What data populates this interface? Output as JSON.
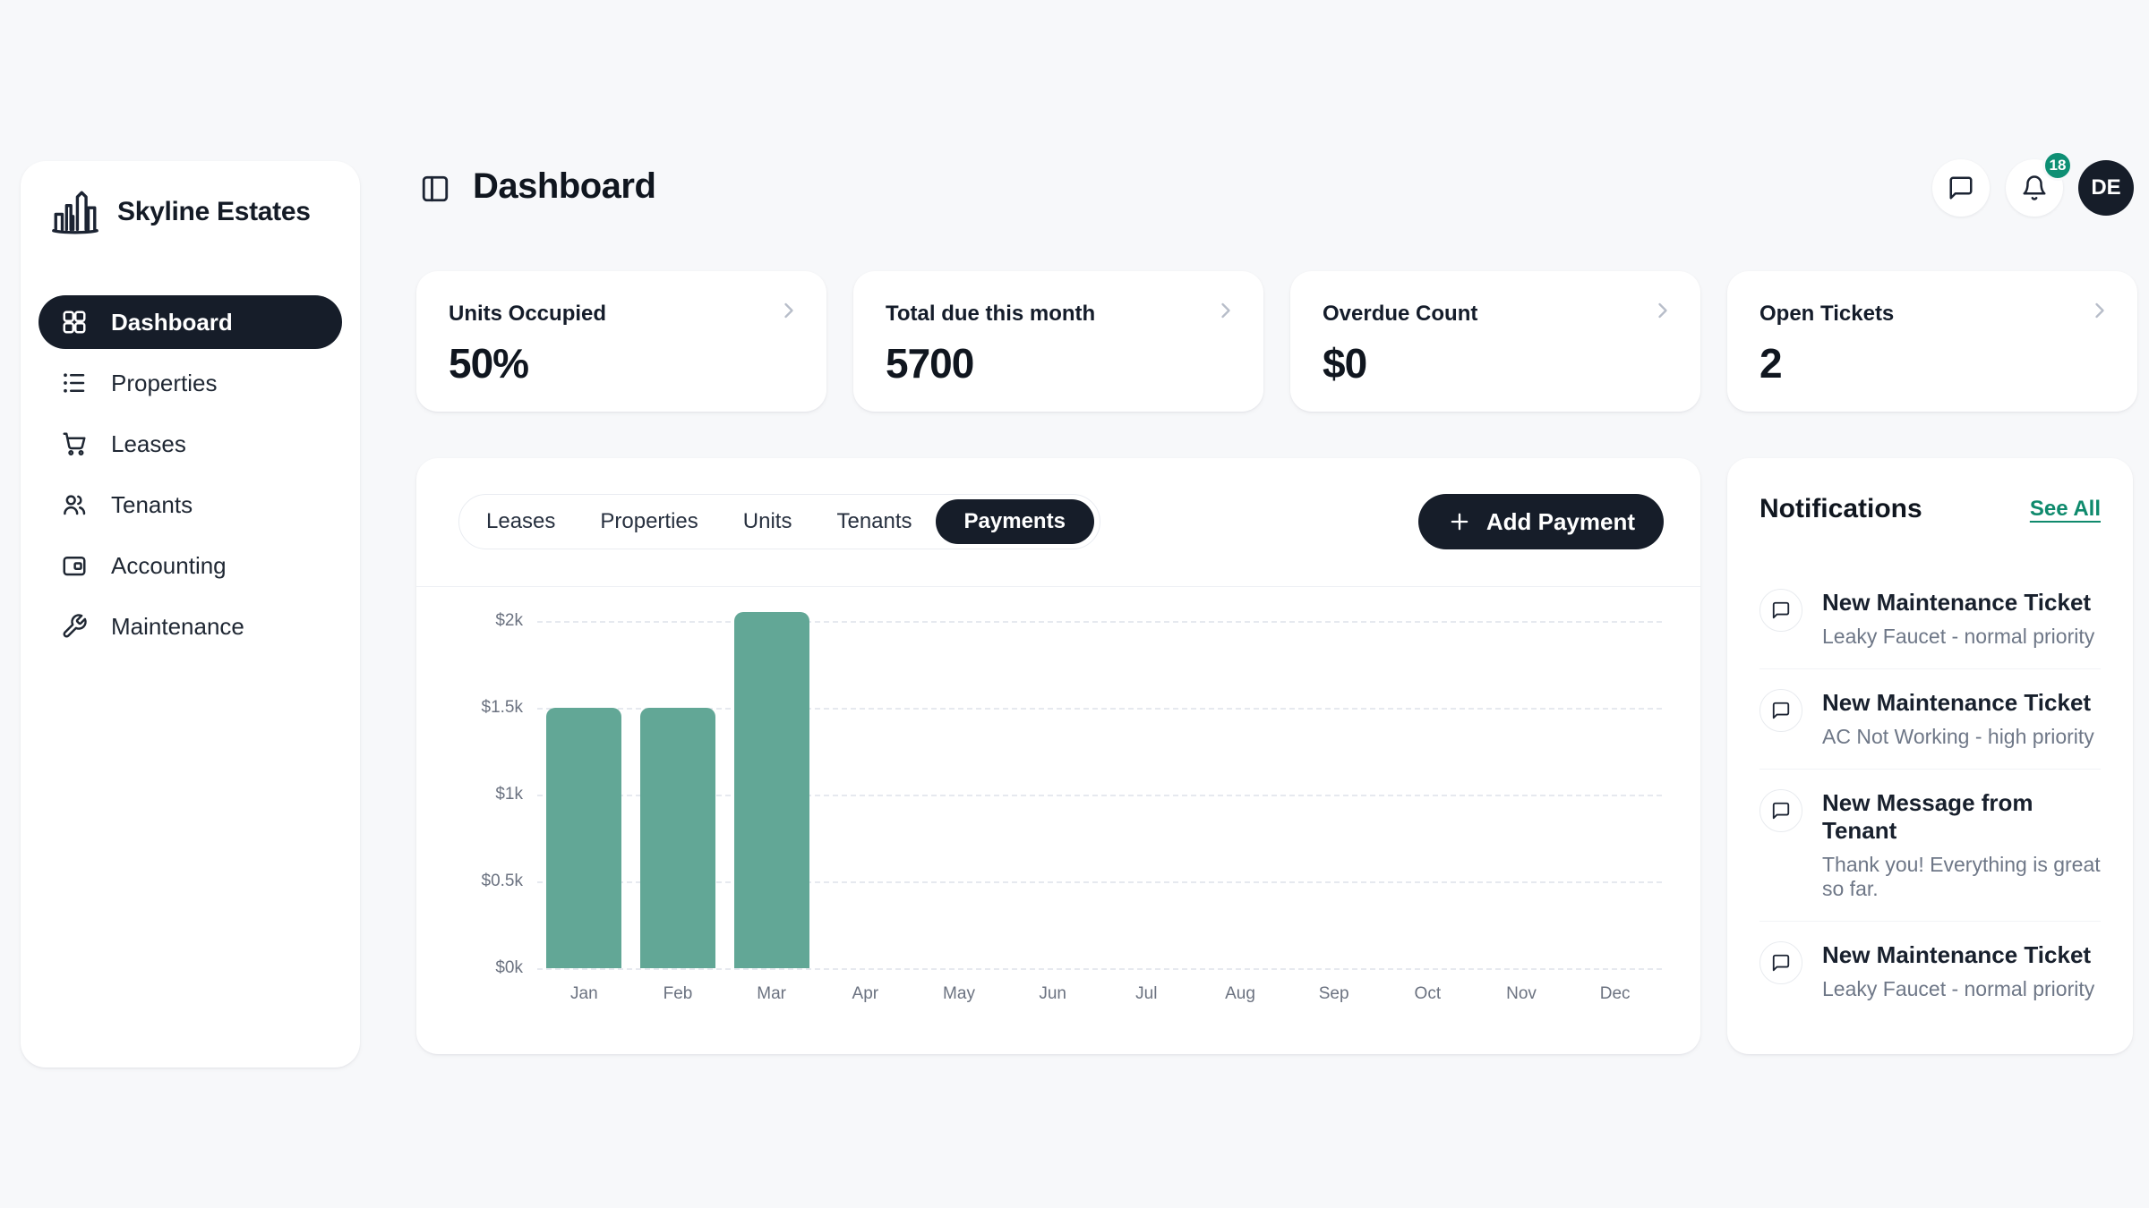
{
  "sidebar": {
    "brand": "Skyline Estates",
    "items": [
      {
        "label": "Dashboard",
        "active": true
      },
      {
        "label": "Properties",
        "active": false
      },
      {
        "label": "Leases",
        "active": false
      },
      {
        "label": "Tenants",
        "active": false
      },
      {
        "label": "Accounting",
        "active": false
      },
      {
        "label": "Maintenance",
        "active": false
      }
    ]
  },
  "header": {
    "title": "Dashboard",
    "notification_badge": "18",
    "avatar_initials": "DE"
  },
  "stat_cards": [
    {
      "label": "Units Occupied",
      "value": "50%"
    },
    {
      "label": "Total due this month",
      "value": "5700"
    },
    {
      "label": "Overdue Count",
      "value": "$0"
    },
    {
      "label": "Open Tickets",
      "value": "2"
    }
  ],
  "tabs": {
    "items": [
      {
        "label": "Leases",
        "active": false
      },
      {
        "label": "Properties",
        "active": false
      },
      {
        "label": "Units",
        "active": false
      },
      {
        "label": "Tenants",
        "active": false
      },
      {
        "label": "Payments",
        "active": true
      }
    ]
  },
  "actions": {
    "add_payment": "Add Payment"
  },
  "chart_data": {
    "type": "bar",
    "title": "",
    "xlabel": "",
    "ylabel": "",
    "categories": [
      "Jan",
      "Feb",
      "Mar",
      "Apr",
      "May",
      "Jun",
      "Jul",
      "Aug",
      "Sep",
      "Oct",
      "Nov",
      "Dec"
    ],
    "values": [
      1500,
      1500,
      2050,
      0,
      0,
      0,
      0,
      0,
      0,
      0,
      0,
      0
    ],
    "ytick_labels": [
      "$0k",
      "$0.5k",
      "$1k",
      "$1.5k",
      "$2k"
    ],
    "ytick_values": [
      0,
      500,
      1000,
      1500,
      2000
    ],
    "ylim": [
      0,
      2150
    ],
    "grid": "dashed-horizontal",
    "legend": "none",
    "bar_color": "#62a796"
  },
  "notifications": {
    "title": "Notifications",
    "see_all": "See All",
    "items": [
      {
        "title": "New Maintenance Ticket",
        "subtitle": "Leaky Faucet - normal priority"
      },
      {
        "title": "New Maintenance Ticket",
        "subtitle": "AC Not Working - high priority"
      },
      {
        "title": "New Message from Tenant",
        "subtitle": "Thank you! Everything is great so far."
      },
      {
        "title": "New Maintenance Ticket",
        "subtitle": "Leaky Faucet - normal priority"
      }
    ]
  },
  "colors": {
    "accent_badge_teal": "#0e8f74",
    "link_green": "#0f8a6d",
    "bar_teal": "#62a796",
    "dark": "#161d29",
    "page_background": "#f7f8fa"
  }
}
